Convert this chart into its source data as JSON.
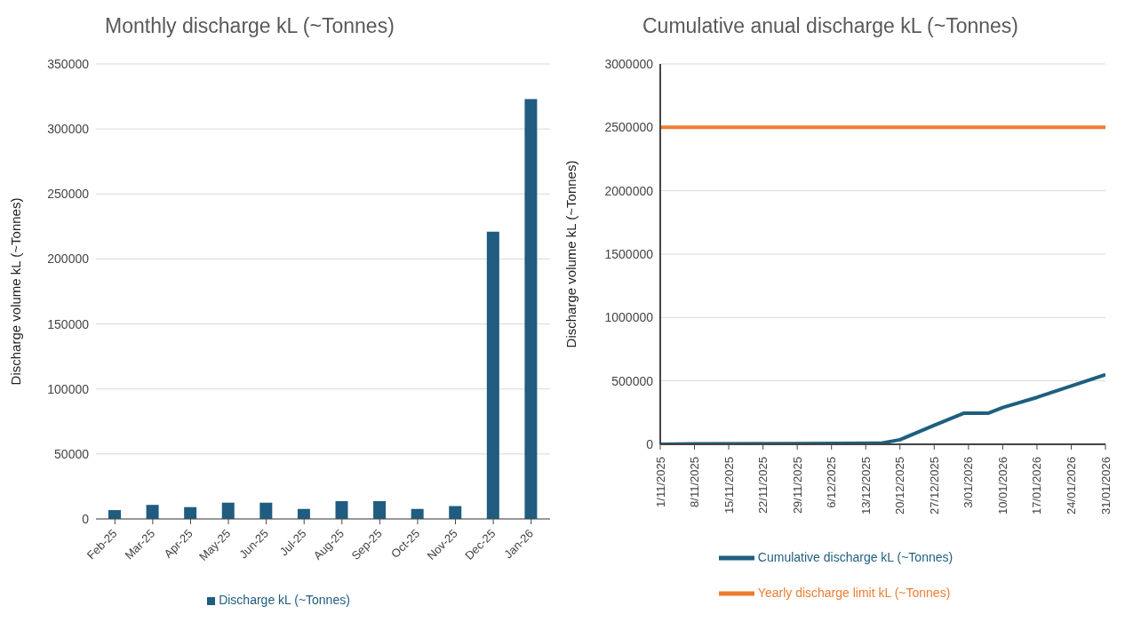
{
  "chart_data": [
    {
      "type": "bar",
      "title": "Monthly discharge kL (~Tonnes)",
      "ylabel": "Discharge volume kL (~Tonnes)",
      "categories": [
        "Feb-25",
        "Mar-25",
        "Apr-25",
        "May-25",
        "Jun-25",
        "Jul-25",
        "Aug-25",
        "Sep-25",
        "Oct-25",
        "Nov-25",
        "Dec-25",
        "Jan-26"
      ],
      "series": [
        {
          "name": "Discharge kL (~Tonnes)",
          "color": "#1f5c80",
          "values": [
            6800,
            10800,
            9100,
            12500,
            12500,
            7700,
            13700,
            13700,
            7700,
            9900,
            221000,
            323000
          ]
        }
      ],
      "ylim": [
        0,
        350000
      ],
      "yticks": [
        0,
        50000,
        100000,
        150000,
        200000,
        250000,
        300000,
        350000
      ],
      "grid": "y",
      "legend": "bottom"
    },
    {
      "type": "line",
      "title": "Cumulative anual discharge kL (~Tonnes)",
      "ylabel": "Discharge volume kL (~Tonnes)",
      "series": [
        {
          "name": "Cumulative discharge kL (~Tonnes)",
          "color": "#1f5f7f",
          "x": [
            "2025-11-01",
            "2025-11-08",
            "2025-11-29",
            "2025-12-16",
            "2025-12-20",
            "2025-12-27",
            "2026-01-02",
            "2026-01-07",
            "2026-01-10",
            "2026-01-17",
            "2026-01-24",
            "2026-01-31"
          ],
          "values": [
            0,
            3000,
            5000,
            8000,
            36000,
            150000,
            245000,
            245000,
            290000,
            370000,
            460000,
            550000
          ]
        },
        {
          "name": "Yearly discharge limit kL (~Tonnes)",
          "color": "#ed7d31",
          "x": [
            "2025-11-01",
            "2026-01-31"
          ],
          "values": [
            2500000,
            2500000
          ]
        }
      ],
      "xlim": [
        "2025-11-01",
        "2026-01-31"
      ],
      "xticks": [
        {
          "value": "2025-11-01",
          "label": "1/11/2025"
        },
        {
          "value": "2025-11-08",
          "label": "8/11/2025"
        },
        {
          "value": "2025-11-15",
          "label": "15/11/2025"
        },
        {
          "value": "2025-11-22",
          "label": "22/11/2025"
        },
        {
          "value": "2025-11-29",
          "label": "29/11/2025"
        },
        {
          "value": "2025-12-06",
          "label": "6/12/2025"
        },
        {
          "value": "2025-12-13",
          "label": "13/12/2025"
        },
        {
          "value": "2025-12-20",
          "label": "20/12/2025"
        },
        {
          "value": "2025-12-27",
          "label": "27/12/2025"
        },
        {
          "value": "2026-01-03",
          "label": "3/01/2026"
        },
        {
          "value": "2026-01-10",
          "label": "10/01/2026"
        },
        {
          "value": "2026-01-17",
          "label": "17/01/2026"
        },
        {
          "value": "2026-01-24",
          "label": "24/01/2026"
        },
        {
          "value": "2026-01-31",
          "label": "31/01/2026"
        }
      ],
      "ylim": [
        0,
        3000000
      ],
      "yticks": [
        0,
        500000,
        1000000,
        1500000,
        2000000,
        2500000,
        3000000
      ],
      "grid": "y",
      "legend": "bottom",
      "marker": "none"
    }
  ]
}
